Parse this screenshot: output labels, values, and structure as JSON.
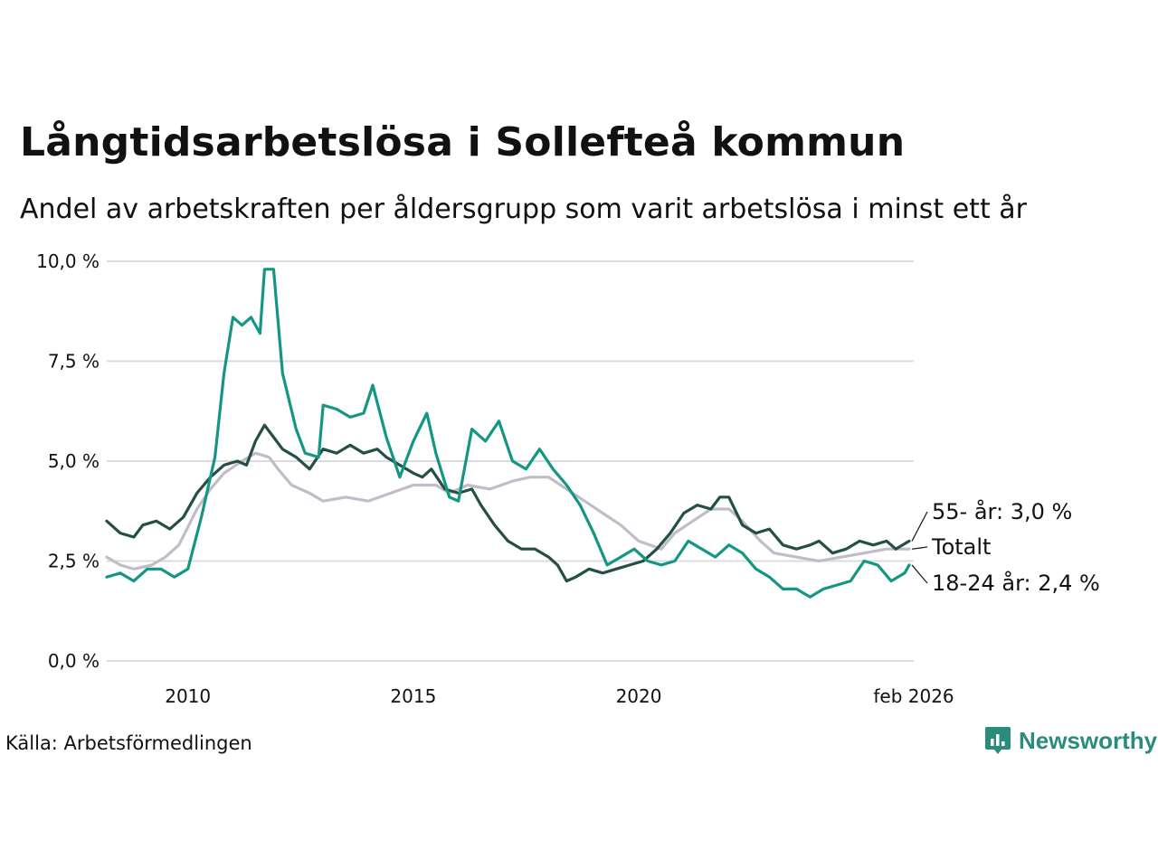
{
  "title": "Långtidsarbetslösa i Sollefteå kommun",
  "subtitle": "Andel av arbetskraften per åldersgrupp som varit arbetslösa i minst ett år",
  "source": "Källa: Arbetsförmedlingen",
  "logo": {
    "name": "Newsworthy"
  },
  "colors": {
    "totalt": "#c0bdc9",
    "age_55": "#234f47",
    "age_18_24": "#149685",
    "grid": "#dcdcdc",
    "brand": "#2a8c7c"
  },
  "chart_data": {
    "type": "line",
    "title": "Långtidsarbetslösa i Sollefteå kommun",
    "ylim": [
      0,
      10
    ],
    "xlim": [
      2008.2,
      2026.1
    ],
    "yticks": [
      {
        "value": 0,
        "label": "0,0 %"
      },
      {
        "value": 2.5,
        "label": "2,5 %"
      },
      {
        "value": 5,
        "label": "5,0 %"
      },
      {
        "value": 7.5,
        "label": "7,5 %"
      },
      {
        "value": 10,
        "label": "10,0 %"
      }
    ],
    "xticks": [
      {
        "value": 2010,
        "label": "2010"
      },
      {
        "value": 2015,
        "label": "2015"
      },
      {
        "value": 2020,
        "label": "2020"
      },
      {
        "value": 2026.1,
        "label": "feb 2026"
      }
    ],
    "series": [
      {
        "name": "Totalt",
        "end_label": "Totalt",
        "color_key": "totalt",
        "points": [
          [
            2008.2,
            2.6
          ],
          [
            2008.5,
            2.4
          ],
          [
            2008.8,
            2.3
          ],
          [
            2009.2,
            2.4
          ],
          [
            2009.5,
            2.6
          ],
          [
            2009.8,
            2.9
          ],
          [
            2010.2,
            3.8
          ],
          [
            2010.5,
            4.3
          ],
          [
            2010.8,
            4.7
          ],
          [
            2011.2,
            5.0
          ],
          [
            2011.5,
            5.2
          ],
          [
            2011.8,
            5.1
          ],
          [
            2012.0,
            4.8
          ],
          [
            2012.3,
            4.4
          ],
          [
            2012.7,
            4.2
          ],
          [
            2013.0,
            4.0
          ],
          [
            2013.5,
            4.1
          ],
          [
            2014.0,
            4.0
          ],
          [
            2014.5,
            4.2
          ],
          [
            2015.0,
            4.4
          ],
          [
            2015.5,
            4.4
          ],
          [
            2015.8,
            4.2
          ],
          [
            2016.2,
            4.4
          ],
          [
            2016.7,
            4.3
          ],
          [
            2017.2,
            4.5
          ],
          [
            2017.6,
            4.6
          ],
          [
            2018.0,
            4.6
          ],
          [
            2018.4,
            4.3
          ],
          [
            2018.8,
            4.0
          ],
          [
            2019.2,
            3.7
          ],
          [
            2019.6,
            3.4
          ],
          [
            2020.0,
            3.0
          ],
          [
            2020.5,
            2.8
          ],
          [
            2020.8,
            3.2
          ],
          [
            2021.2,
            3.5
          ],
          [
            2021.6,
            3.8
          ],
          [
            2022.0,
            3.8
          ],
          [
            2022.3,
            3.5
          ],
          [
            2022.7,
            3.0
          ],
          [
            2023.0,
            2.7
          ],
          [
            2023.5,
            2.6
          ],
          [
            2024.0,
            2.5
          ],
          [
            2024.5,
            2.6
          ],
          [
            2025.0,
            2.7
          ],
          [
            2025.5,
            2.8
          ],
          [
            2026.0,
            2.8
          ]
        ]
      },
      {
        "name": "55- år",
        "end_label": "55- år: 3,0 %",
        "color_key": "age_55",
        "points": [
          [
            2008.2,
            3.5
          ],
          [
            2008.5,
            3.2
          ],
          [
            2008.8,
            3.1
          ],
          [
            2009.0,
            3.4
          ],
          [
            2009.3,
            3.5
          ],
          [
            2009.6,
            3.3
          ],
          [
            2009.9,
            3.6
          ],
          [
            2010.2,
            4.2
          ],
          [
            2010.5,
            4.6
          ],
          [
            2010.8,
            4.9
          ],
          [
            2011.1,
            5.0
          ],
          [
            2011.3,
            4.9
          ],
          [
            2011.5,
            5.5
          ],
          [
            2011.7,
            5.9
          ],
          [
            2011.9,
            5.6
          ],
          [
            2012.1,
            5.3
          ],
          [
            2012.4,
            5.1
          ],
          [
            2012.7,
            4.8
          ],
          [
            2013.0,
            5.3
          ],
          [
            2013.3,
            5.2
          ],
          [
            2013.6,
            5.4
          ],
          [
            2013.9,
            5.2
          ],
          [
            2014.2,
            5.3
          ],
          [
            2014.4,
            5.1
          ],
          [
            2014.7,
            4.9
          ],
          [
            2015.0,
            4.7
          ],
          [
            2015.2,
            4.6
          ],
          [
            2015.4,
            4.8
          ],
          [
            2015.7,
            4.3
          ],
          [
            2016.0,
            4.2
          ],
          [
            2016.3,
            4.3
          ],
          [
            2016.5,
            3.9
          ],
          [
            2016.8,
            3.4
          ],
          [
            2017.1,
            3.0
          ],
          [
            2017.4,
            2.8
          ],
          [
            2017.7,
            2.8
          ],
          [
            2018.0,
            2.6
          ],
          [
            2018.2,
            2.4
          ],
          [
            2018.4,
            2.0
          ],
          [
            2018.6,
            2.1
          ],
          [
            2018.9,
            2.3
          ],
          [
            2019.2,
            2.2
          ],
          [
            2019.5,
            2.3
          ],
          [
            2019.8,
            2.4
          ],
          [
            2020.1,
            2.5
          ],
          [
            2020.4,
            2.8
          ],
          [
            2020.7,
            3.2
          ],
          [
            2021.0,
            3.7
          ],
          [
            2021.3,
            3.9
          ],
          [
            2021.6,
            3.8
          ],
          [
            2021.8,
            4.1
          ],
          [
            2022.0,
            4.1
          ],
          [
            2022.3,
            3.4
          ],
          [
            2022.6,
            3.2
          ],
          [
            2022.9,
            3.3
          ],
          [
            2023.2,
            2.9
          ],
          [
            2023.5,
            2.8
          ],
          [
            2023.8,
            2.9
          ],
          [
            2024.0,
            3.0
          ],
          [
            2024.3,
            2.7
          ],
          [
            2024.6,
            2.8
          ],
          [
            2024.9,
            3.0
          ],
          [
            2025.2,
            2.9
          ],
          [
            2025.5,
            3.0
          ],
          [
            2025.7,
            2.8
          ],
          [
            2026.0,
            3.0
          ]
        ]
      },
      {
        "name": "18-24 år",
        "end_label": "18-24 år: 2,4 %",
        "color_key": "age_18_24",
        "points": [
          [
            2008.2,
            2.1
          ],
          [
            2008.5,
            2.2
          ],
          [
            2008.8,
            2.0
          ],
          [
            2009.1,
            2.3
          ],
          [
            2009.4,
            2.3
          ],
          [
            2009.7,
            2.1
          ],
          [
            2010.0,
            2.3
          ],
          [
            2010.3,
            3.6
          ],
          [
            2010.6,
            5.1
          ],
          [
            2010.8,
            7.2
          ],
          [
            2011.0,
            8.6
          ],
          [
            2011.2,
            8.4
          ],
          [
            2011.4,
            8.6
          ],
          [
            2011.6,
            8.2
          ],
          [
            2011.7,
            9.8
          ],
          [
            2011.9,
            9.8
          ],
          [
            2012.1,
            7.2
          ],
          [
            2012.4,
            5.8
          ],
          [
            2012.6,
            5.2
          ],
          [
            2012.9,
            5.1
          ],
          [
            2013.0,
            6.4
          ],
          [
            2013.3,
            6.3
          ],
          [
            2013.6,
            6.1
          ],
          [
            2013.9,
            6.2
          ],
          [
            2014.1,
            6.9
          ],
          [
            2014.4,
            5.6
          ],
          [
            2014.7,
            4.6
          ],
          [
            2015.0,
            5.5
          ],
          [
            2015.3,
            6.2
          ],
          [
            2015.5,
            5.2
          ],
          [
            2015.8,
            4.1
          ],
          [
            2016.0,
            4.0
          ],
          [
            2016.3,
            5.8
          ],
          [
            2016.6,
            5.5
          ],
          [
            2016.9,
            6.0
          ],
          [
            2017.2,
            5.0
          ],
          [
            2017.5,
            4.8
          ],
          [
            2017.8,
            5.3
          ],
          [
            2018.1,
            4.8
          ],
          [
            2018.4,
            4.4
          ],
          [
            2018.7,
            3.9
          ],
          [
            2019.0,
            3.2
          ],
          [
            2019.3,
            2.4
          ],
          [
            2019.6,
            2.6
          ],
          [
            2019.9,
            2.8
          ],
          [
            2020.2,
            2.5
          ],
          [
            2020.5,
            2.4
          ],
          [
            2020.8,
            2.5
          ],
          [
            2021.1,
            3.0
          ],
          [
            2021.4,
            2.8
          ],
          [
            2021.7,
            2.6
          ],
          [
            2022.0,
            2.9
          ],
          [
            2022.3,
            2.7
          ],
          [
            2022.6,
            2.3
          ],
          [
            2022.9,
            2.1
          ],
          [
            2023.2,
            1.8
          ],
          [
            2023.5,
            1.8
          ],
          [
            2023.8,
            1.6
          ],
          [
            2024.1,
            1.8
          ],
          [
            2024.4,
            1.9
          ],
          [
            2024.7,
            2.0
          ],
          [
            2025.0,
            2.5
          ],
          [
            2025.3,
            2.4
          ],
          [
            2025.6,
            2.0
          ],
          [
            2025.9,
            2.2
          ],
          [
            2026.0,
            2.4
          ]
        ]
      }
    ],
    "label_order": [
      "55- år",
      "Totalt",
      "18-24 år"
    ]
  }
}
